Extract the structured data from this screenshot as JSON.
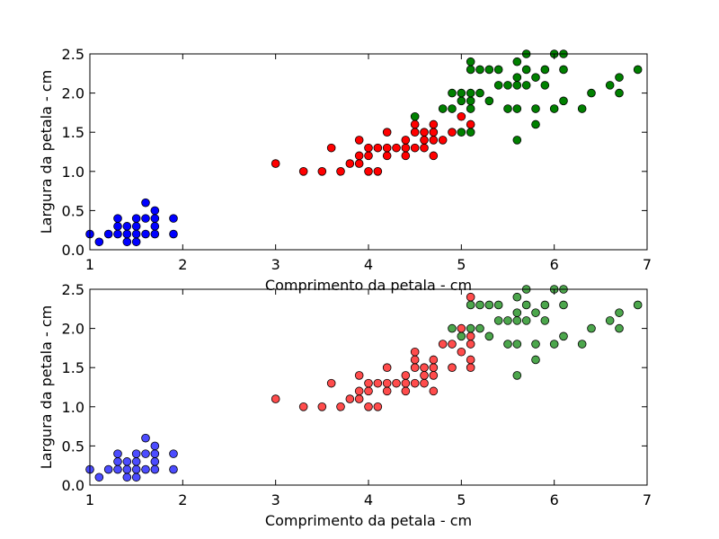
{
  "chart_data": [
    {
      "type": "scatter",
      "xlabel": "Comprimento da petala - cm",
      "ylabel": "Largura da petala - cm",
      "xlim": [
        1,
        7
      ],
      "ylim": [
        0,
        2.5
      ],
      "x_ticks": [
        "1",
        "2",
        "3",
        "4",
        "5",
        "6",
        "7"
      ],
      "y_ticks": [
        "0.0",
        "0.5",
        "1.0",
        "1.5",
        "2.0",
        "2.5"
      ],
      "grid": false,
      "legend": "none",
      "series": [
        {
          "color": "#0000ff",
          "points": [
            [
              1.0,
              0.2
            ],
            [
              1.1,
              0.1
            ],
            [
              1.2,
              0.2
            ],
            [
              1.3,
              0.2
            ],
            [
              1.3,
              0.3
            ],
            [
              1.3,
              0.4
            ],
            [
              1.4,
              0.1
            ],
            [
              1.4,
              0.2
            ],
            [
              1.4,
              0.3
            ],
            [
              1.5,
              0.1
            ],
            [
              1.5,
              0.2
            ],
            [
              1.5,
              0.3
            ],
            [
              1.5,
              0.4
            ],
            [
              1.6,
              0.2
            ],
            [
              1.6,
              0.4
            ],
            [
              1.6,
              0.6
            ],
            [
              1.7,
              0.2
            ],
            [
              1.7,
              0.3
            ],
            [
              1.7,
              0.4
            ],
            [
              1.7,
              0.5
            ],
            [
              1.9,
              0.2
            ],
            [
              1.9,
              0.4
            ]
          ]
        },
        {
          "color": "#ff0000",
          "points": [
            [
              3.0,
              1.1
            ],
            [
              3.3,
              1.0
            ],
            [
              3.5,
              1.0
            ],
            [
              3.6,
              1.3
            ],
            [
              3.7,
              1.0
            ],
            [
              3.8,
              1.1
            ],
            [
              3.9,
              1.1
            ],
            [
              3.9,
              1.2
            ],
            [
              3.9,
              1.4
            ],
            [
              4.0,
              1.0
            ],
            [
              4.0,
              1.2
            ],
            [
              4.0,
              1.3
            ],
            [
              4.1,
              1.0
            ],
            [
              4.1,
              1.3
            ],
            [
              4.2,
              1.2
            ],
            [
              4.2,
              1.3
            ],
            [
              4.2,
              1.5
            ],
            [
              4.3,
              1.3
            ],
            [
              4.4,
              1.2
            ],
            [
              4.4,
              1.3
            ],
            [
              4.4,
              1.4
            ],
            [
              4.5,
              1.3
            ],
            [
              4.5,
              1.5
            ],
            [
              4.5,
              1.6
            ],
            [
              4.6,
              1.3
            ],
            [
              4.6,
              1.4
            ],
            [
              4.6,
              1.5
            ],
            [
              4.7,
              1.2
            ],
            [
              4.7,
              1.4
            ],
            [
              4.7,
              1.5
            ],
            [
              4.7,
              1.6
            ],
            [
              4.8,
              1.4
            ],
            [
              4.9,
              1.5
            ],
            [
              5.0,
              1.7
            ],
            [
              5.1,
              1.6
            ]
          ]
        },
        {
          "color": "#008000",
          "points": [
            [
              4.5,
              1.7
            ],
            [
              4.8,
              1.8
            ],
            [
              4.9,
              1.8
            ],
            [
              4.9,
              2.0
            ],
            [
              5.0,
              1.5
            ],
            [
              5.0,
              1.9
            ],
            [
              5.0,
              2.0
            ],
            [
              5.1,
              1.5
            ],
            [
              5.1,
              1.8
            ],
            [
              5.1,
              1.9
            ],
            [
              5.1,
              2.0
            ],
            [
              5.1,
              2.3
            ],
            [
              5.1,
              2.4
            ],
            [
              5.2,
              2.0
            ],
            [
              5.2,
              2.3
            ],
            [
              5.3,
              1.9
            ],
            [
              5.3,
              2.3
            ],
            [
              5.4,
              2.1
            ],
            [
              5.4,
              2.3
            ],
            [
              5.5,
              1.8
            ],
            [
              5.5,
              2.1
            ],
            [
              5.6,
              1.4
            ],
            [
              5.6,
              1.8
            ],
            [
              5.6,
              2.1
            ],
            [
              5.6,
              2.2
            ],
            [
              5.6,
              2.4
            ],
            [
              5.7,
              2.1
            ],
            [
              5.7,
              2.3
            ],
            [
              5.7,
              2.5
            ],
            [
              5.8,
              1.6
            ],
            [
              5.8,
              1.8
            ],
            [
              5.8,
              2.2
            ],
            [
              5.9,
              2.1
            ],
            [
              5.9,
              2.3
            ],
            [
              6.0,
              1.8
            ],
            [
              6.0,
              2.5
            ],
            [
              6.1,
              1.9
            ],
            [
              6.1,
              2.3
            ],
            [
              6.1,
              2.5
            ],
            [
              6.3,
              1.8
            ],
            [
              6.4,
              2.0
            ],
            [
              6.6,
              2.1
            ],
            [
              6.7,
              2.0
            ],
            [
              6.7,
              2.2
            ],
            [
              6.9,
              2.3
            ]
          ]
        }
      ]
    },
    {
      "type": "scatter",
      "xlabel": "Comprimento da petala - cm",
      "ylabel": "Largura da petala - cm",
      "xlim": [
        1,
        7
      ],
      "ylim": [
        0,
        2.5
      ],
      "x_ticks": [
        "1",
        "2",
        "3",
        "4",
        "5",
        "6",
        "7"
      ],
      "y_ticks": [
        "0.0",
        "0.5",
        "1.0",
        "1.5",
        "2.0",
        "2.5"
      ],
      "grid": false,
      "legend": "none",
      "marker_opacity": 0.7,
      "series": [
        {
          "color": "#0000ff",
          "points": [
            [
              1.0,
              0.2
            ],
            [
              1.1,
              0.1
            ],
            [
              1.2,
              0.2
            ],
            [
              1.3,
              0.2
            ],
            [
              1.3,
              0.3
            ],
            [
              1.3,
              0.4
            ],
            [
              1.4,
              0.1
            ],
            [
              1.4,
              0.2
            ],
            [
              1.4,
              0.3
            ],
            [
              1.5,
              0.1
            ],
            [
              1.5,
              0.2
            ],
            [
              1.5,
              0.3
            ],
            [
              1.5,
              0.4
            ],
            [
              1.6,
              0.2
            ],
            [
              1.6,
              0.4
            ],
            [
              1.6,
              0.6
            ],
            [
              1.7,
              0.2
            ],
            [
              1.7,
              0.3
            ],
            [
              1.7,
              0.4
            ],
            [
              1.7,
              0.5
            ],
            [
              1.9,
              0.2
            ],
            [
              1.9,
              0.4
            ]
          ]
        },
        {
          "color": "#ff0000",
          "points": [
            [
              3.0,
              1.1
            ],
            [
              3.3,
              1.0
            ],
            [
              3.5,
              1.0
            ],
            [
              3.6,
              1.3
            ],
            [
              3.7,
              1.0
            ],
            [
              3.8,
              1.1
            ],
            [
              3.9,
              1.1
            ],
            [
              3.9,
              1.2
            ],
            [
              3.9,
              1.4
            ],
            [
              4.0,
              1.0
            ],
            [
              4.0,
              1.2
            ],
            [
              4.0,
              1.3
            ],
            [
              4.1,
              1.0
            ],
            [
              4.1,
              1.3
            ],
            [
              4.2,
              1.2
            ],
            [
              4.2,
              1.3
            ],
            [
              4.2,
              1.5
            ],
            [
              4.3,
              1.3
            ],
            [
              4.4,
              1.2
            ],
            [
              4.4,
              1.3
            ],
            [
              4.4,
              1.4
            ],
            [
              4.5,
              1.3
            ],
            [
              4.5,
              1.5
            ],
            [
              4.5,
              1.6
            ],
            [
              4.5,
              1.7
            ],
            [
              4.6,
              1.3
            ],
            [
              4.6,
              1.4
            ],
            [
              4.6,
              1.5
            ],
            [
              4.7,
              1.2
            ],
            [
              4.7,
              1.4
            ],
            [
              4.7,
              1.5
            ],
            [
              4.7,
              1.6
            ],
            [
              4.8,
              1.8
            ],
            [
              4.9,
              1.5
            ],
            [
              4.9,
              1.8
            ],
            [
              5.0,
              1.7
            ],
            [
              5.0,
              2.0
            ],
            [
              5.1,
              1.5
            ],
            [
              5.1,
              1.6
            ],
            [
              5.1,
              1.8
            ],
            [
              5.1,
              1.9
            ],
            [
              5.1,
              2.4
            ]
          ]
        },
        {
          "color": "#008000",
          "points": [
            [
              4.9,
              2.0
            ],
            [
              5.0,
              1.9
            ],
            [
              5.1,
              2.0
            ],
            [
              5.1,
              2.3
            ],
            [
              5.2,
              2.0
            ],
            [
              5.2,
              2.3
            ],
            [
              5.3,
              1.9
            ],
            [
              5.3,
              2.3
            ],
            [
              5.4,
              2.1
            ],
            [
              5.4,
              2.3
            ],
            [
              5.5,
              1.8
            ],
            [
              5.5,
              2.1
            ],
            [
              5.6,
              1.4
            ],
            [
              5.6,
              1.8
            ],
            [
              5.6,
              2.1
            ],
            [
              5.6,
              2.2
            ],
            [
              5.6,
              2.4
            ],
            [
              5.7,
              2.1
            ],
            [
              5.7,
              2.3
            ],
            [
              5.7,
              2.5
            ],
            [
              5.8,
              1.6
            ],
            [
              5.8,
              1.8
            ],
            [
              5.8,
              2.2
            ],
            [
              5.9,
              2.1
            ],
            [
              5.9,
              2.3
            ],
            [
              6.0,
              1.8
            ],
            [
              6.0,
              2.5
            ],
            [
              6.1,
              1.9
            ],
            [
              6.1,
              2.3
            ],
            [
              6.1,
              2.5
            ],
            [
              6.3,
              1.8
            ],
            [
              6.4,
              2.0
            ],
            [
              6.6,
              2.1
            ],
            [
              6.7,
              2.0
            ],
            [
              6.7,
              2.2
            ],
            [
              6.9,
              2.3
            ]
          ]
        }
      ]
    }
  ]
}
